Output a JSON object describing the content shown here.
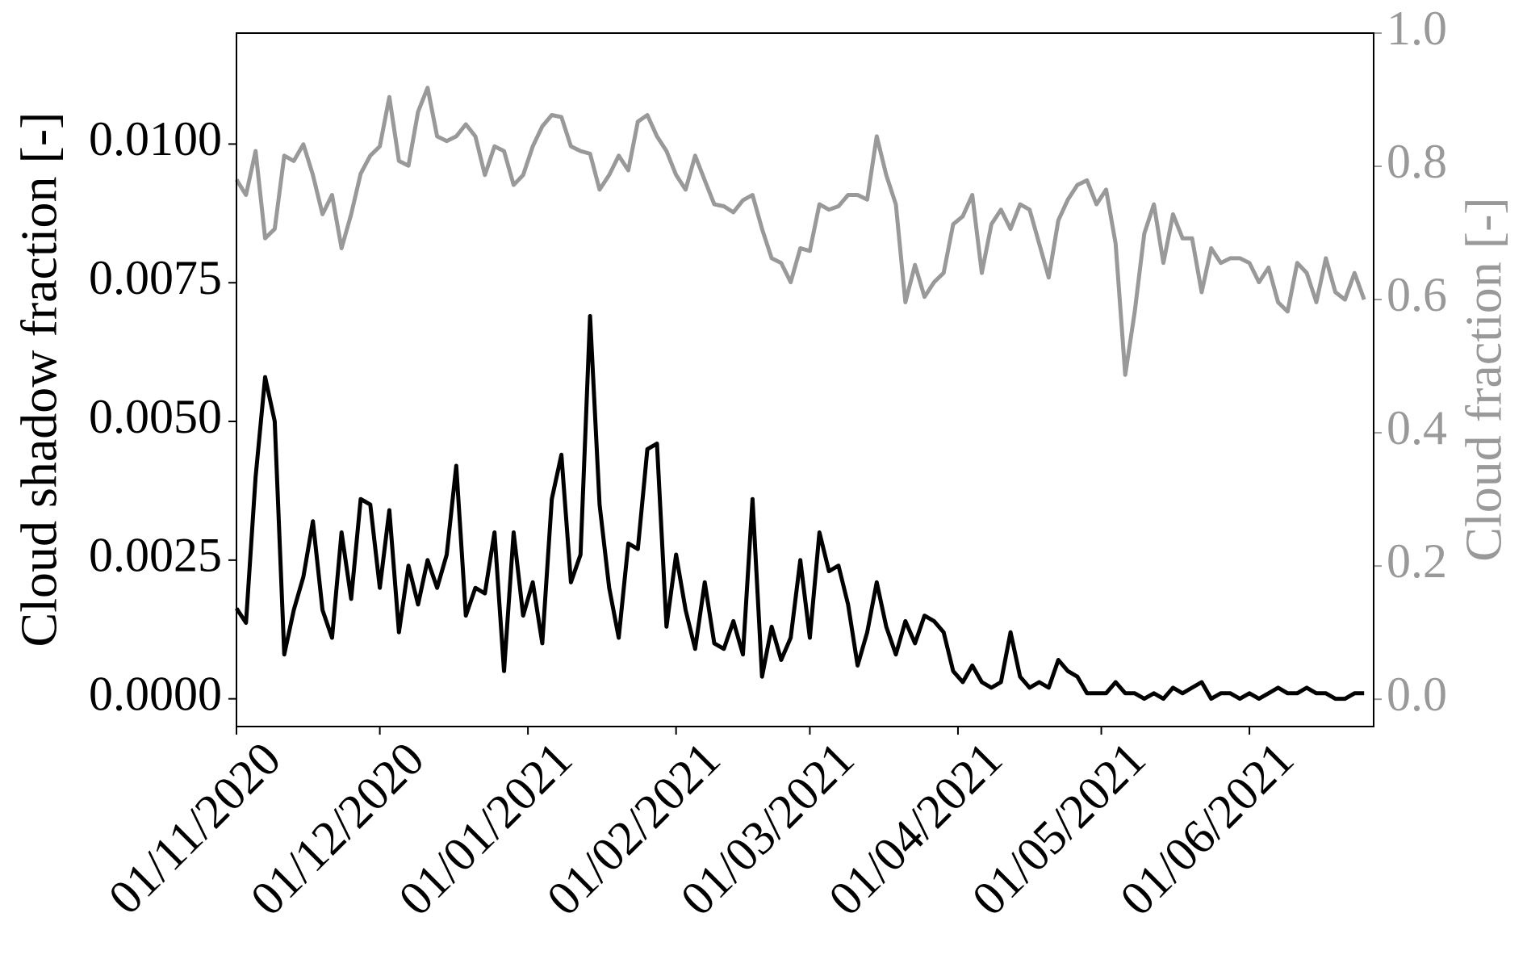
{
  "chart_data": {
    "type": "line",
    "ylabel": "Cloud shadow fraction [-]",
    "y2label": "Cloud fraction [-]",
    "x": [
      "2020-11-01",
      "2020-11-03",
      "2020-11-05",
      "2020-11-07",
      "2020-11-09",
      "2020-11-11",
      "2020-11-13",
      "2020-11-15",
      "2020-11-17",
      "2020-11-19",
      "2020-11-21",
      "2020-11-23",
      "2020-11-25",
      "2020-11-27",
      "2020-11-29",
      "2020-12-01",
      "2020-12-03",
      "2020-12-05",
      "2020-12-07",
      "2020-12-09",
      "2020-12-11",
      "2020-12-13",
      "2020-12-15",
      "2020-12-17",
      "2020-12-19",
      "2020-12-21",
      "2020-12-23",
      "2020-12-25",
      "2020-12-27",
      "2020-12-29",
      "2020-12-31",
      "2021-01-02",
      "2021-01-04",
      "2021-01-06",
      "2021-01-08",
      "2021-01-10",
      "2021-01-12",
      "2021-01-14",
      "2021-01-16",
      "2021-01-18",
      "2021-01-20",
      "2021-01-22",
      "2021-01-24",
      "2021-01-26",
      "2021-01-28",
      "2021-01-30",
      "2021-02-01",
      "2021-02-03",
      "2021-02-05",
      "2021-02-07",
      "2021-02-09",
      "2021-02-11",
      "2021-02-13",
      "2021-02-15",
      "2021-02-17",
      "2021-02-19",
      "2021-02-21",
      "2021-02-23",
      "2021-02-25",
      "2021-02-27",
      "2021-03-01",
      "2021-03-03",
      "2021-03-05",
      "2021-03-07",
      "2021-03-09",
      "2021-03-11",
      "2021-03-13",
      "2021-03-15",
      "2021-03-17",
      "2021-03-19",
      "2021-03-21",
      "2021-03-23",
      "2021-03-25",
      "2021-03-27",
      "2021-03-29",
      "2021-03-31",
      "2021-04-02",
      "2021-04-04",
      "2021-04-06",
      "2021-04-08",
      "2021-04-10",
      "2021-04-12",
      "2021-04-14",
      "2021-04-16",
      "2021-04-18",
      "2021-04-20",
      "2021-04-22",
      "2021-04-24",
      "2021-04-26",
      "2021-04-28",
      "2021-04-30",
      "2021-05-02",
      "2021-05-04",
      "2021-05-06",
      "2021-05-08",
      "2021-05-10",
      "2021-05-12",
      "2021-05-14",
      "2021-05-16",
      "2021-05-18",
      "2021-05-20",
      "2021-05-22",
      "2021-05-24",
      "2021-05-26",
      "2021-05-28",
      "2021-05-30",
      "2021-06-01",
      "2021-06-03",
      "2021-06-05",
      "2021-06-07",
      "2021-06-09",
      "2021-06-11",
      "2021-06-13",
      "2021-06-15",
      "2021-06-17",
      "2021-06-19",
      "2021-06-21",
      "2021-06-23",
      "2021-06-25"
    ],
    "series": [
      {
        "name": "Cloud shadow fraction",
        "color": "#000000",
        "axis": "y",
        "values": [
          0.00163,
          0.00137,
          0.004,
          0.0058,
          0.005,
          0.0008,
          0.0016,
          0.0022,
          0.0032,
          0.0016,
          0.0011,
          0.003,
          0.0018,
          0.0036,
          0.0035,
          0.002,
          0.0034,
          0.0012,
          0.0024,
          0.0017,
          0.0025,
          0.002,
          0.0026,
          0.0042,
          0.0015,
          0.002,
          0.0019,
          0.003,
          0.0005,
          0.003,
          0.0015,
          0.0021,
          0.001,
          0.0036,
          0.0044,
          0.0021,
          0.0026,
          0.0069,
          0.0035,
          0.002,
          0.0011,
          0.0028,
          0.0027,
          0.0045,
          0.0046,
          0.0013,
          0.0026,
          0.0016,
          0.0009,
          0.0021,
          0.001,
          0.0009,
          0.0014,
          0.0008,
          0.0036,
          0.0004,
          0.0013,
          0.0007,
          0.0011,
          0.0025,
          0.0011,
          0.003,
          0.0023,
          0.0024,
          0.0017,
          0.0006,
          0.0012,
          0.0021,
          0.0013,
          0.0008,
          0.0014,
          0.001,
          0.0015,
          0.0014,
          0.0012,
          0.0005,
          0.0003,
          0.0006,
          0.0003,
          0.0002,
          0.0003,
          0.0012,
          0.0004,
          0.0002,
          0.0003,
          0.0002,
          0.0007,
          0.0005,
          0.0004,
          0.0001,
          0.0001,
          0.0001,
          0.0003,
          0.0001,
          0.0001,
          0.0,
          0.0001,
          0.0,
          0.0002,
          0.0001,
          0.0002,
          0.0003,
          0.0,
          0.0001,
          0.0001,
          0.0,
          0.0001,
          0.0,
          0.0001,
          0.0002,
          0.0001,
          0.0001,
          0.0002,
          0.0001,
          0.0001,
          0.0,
          0.0,
          0.0001,
          0.0001
        ]
      },
      {
        "name": "Cloud fraction",
        "color": "#999999",
        "axis": "y2",
        "values": [
          0.78,
          0.757,
          0.823,
          0.692,
          0.706,
          0.816,
          0.808,
          0.833,
          0.787,
          0.728,
          0.757,
          0.677,
          0.728,
          0.789,
          0.816,
          0.83,
          0.904,
          0.808,
          0.801,
          0.882,
          0.918,
          0.845,
          0.838,
          0.845,
          0.863,
          0.845,
          0.787,
          0.83,
          0.823,
          0.772,
          0.787,
          0.83,
          0.86,
          0.877,
          0.874,
          0.83,
          0.823,
          0.819,
          0.765,
          0.787,
          0.816,
          0.794,
          0.867,
          0.877,
          0.845,
          0.823,
          0.787,
          0.765,
          0.816,
          0.779,
          0.743,
          0.74,
          0.731,
          0.749,
          0.757,
          0.706,
          0.662,
          0.655,
          0.626,
          0.677,
          0.673,
          0.743,
          0.735,
          0.74,
          0.757,
          0.757,
          0.75,
          0.845,
          0.787,
          0.743,
          0.596,
          0.652,
          0.604,
          0.626,
          0.64,
          0.713,
          0.725,
          0.757,
          0.64,
          0.713,
          0.735,
          0.706,
          0.743,
          0.735,
          0.684,
          0.633,
          0.719,
          0.75,
          0.772,
          0.779,
          0.743,
          0.765,
          0.684,
          0.487,
          0.582,
          0.699,
          0.743,
          0.655,
          0.728,
          0.692,
          0.692,
          0.611,
          0.677,
          0.655,
          0.662,
          0.662,
          0.655,
          0.626,
          0.648,
          0.596,
          0.582,
          0.655,
          0.64,
          0.596,
          0.662,
          0.611,
          0.6,
          0.64,
          0.6
        ]
      }
    ],
    "xlim": [
      "2020-11-01",
      "2021-06-27"
    ],
    "xticks": [
      {
        "value": "2020-11-01",
        "label": "01/11/2020"
      },
      {
        "value": "2020-12-01",
        "label": "01/12/2020"
      },
      {
        "value": "2021-01-01",
        "label": "01/01/2021"
      },
      {
        "value": "2021-02-01",
        "label": "01/02/2021"
      },
      {
        "value": "2021-03-01",
        "label": "01/03/2021"
      },
      {
        "value": "2021-04-01",
        "label": "01/04/2021"
      },
      {
        "value": "2021-05-01",
        "label": "01/05/2021"
      },
      {
        "value": "2021-06-01",
        "label": "01/06/2021"
      }
    ],
    "ylim": [
      -0.0005,
      0.012
    ],
    "yticks": [
      {
        "value": 0,
        "label": "0.0000"
      },
      {
        "value": 0.0025,
        "label": "0.0025"
      },
      {
        "value": 0.005,
        "label": "0.0050"
      },
      {
        "value": 0.0075,
        "label": "0.0075"
      },
      {
        "value": 0.01,
        "label": "0.0100"
      }
    ],
    "y2lim": [
      -0.041,
      1.0
    ],
    "y2ticks": [
      {
        "value": 0,
        "label": "0.0"
      },
      {
        "value": 0.2,
        "label": "0.2"
      },
      {
        "value": 0.4,
        "label": "0.4"
      },
      {
        "value": 0.6,
        "label": "0.6"
      },
      {
        "value": 0.8,
        "label": "0.8"
      },
      {
        "value": 1,
        "label": "1.0"
      }
    ],
    "grid": false
  }
}
